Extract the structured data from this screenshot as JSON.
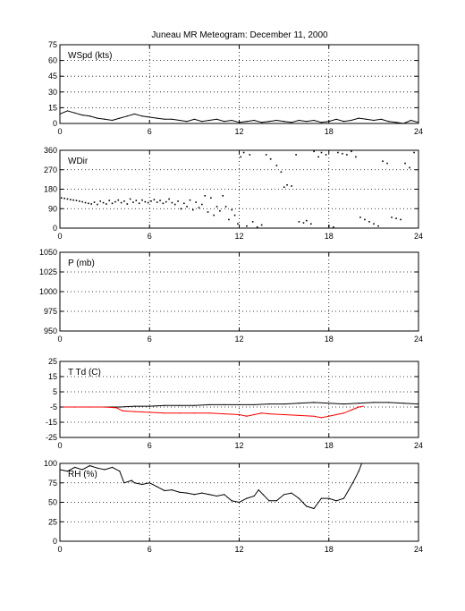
{
  "figure": {
    "title": "Juneau MR Meteogram:   December 11, 2000"
  },
  "colors": {
    "axis": "#000000",
    "grid": "#000000",
    "series_black": "#000000",
    "series_red": "#ff0000"
  },
  "chart_data": [
    {
      "type": "line",
      "label": "WSpd (kts)",
      "xlim": [
        0,
        24
      ],
      "xticks": [
        0,
        6,
        12,
        18,
        24
      ],
      "ylim": [
        0,
        75
      ],
      "yticks": [
        0,
        15,
        30,
        45,
        60,
        75
      ],
      "grid": true,
      "series": [
        {
          "color": "#000000",
          "x": [
            0,
            0.5,
            1,
            1.5,
            2,
            2.5,
            3,
            3.5,
            4,
            4.5,
            5,
            5.5,
            6,
            6.5,
            7,
            7.5,
            8,
            8.5,
            9,
            9.5,
            10,
            10.5,
            11,
            11.5,
            12,
            12.5,
            13,
            13.5,
            14,
            14.5,
            15,
            15.5,
            16,
            16.5,
            17,
            17.5,
            18,
            18.5,
            19,
            19.5,
            20,
            20.5,
            21,
            21.5,
            22,
            22.5,
            23,
            23.5,
            24
          ],
          "y": [
            9,
            12,
            10,
            8,
            7,
            5,
            4,
            3,
            5,
            7,
            9,
            7,
            6,
            5,
            4,
            4,
            3,
            2,
            4,
            2,
            3,
            4,
            2,
            3,
            1,
            2,
            3,
            1,
            2,
            3,
            2,
            1,
            3,
            2,
            3,
            1,
            2,
            4,
            2,
            3,
            5,
            4,
            3,
            4,
            2,
            1,
            0,
            3,
            1
          ]
        }
      ]
    },
    {
      "type": "scatter",
      "label": "WDir",
      "xlim": [
        0,
        24
      ],
      "xticks": [
        0,
        6,
        12,
        18,
        24
      ],
      "ylim": [
        0,
        360
      ],
      "yticks": [
        0,
        90,
        180,
        270,
        360
      ],
      "grid": true,
      "series": [
        {
          "color": "#000000",
          "x": [
            0.1,
            0.3,
            0.5,
            0.7,
            0.9,
            1.1,
            1.3,
            1.5,
            1.7,
            1.9,
            2.1,
            2.3,
            2.5,
            2.7,
            2.9,
            3.1,
            3.3,
            3.5,
            3.7,
            3.9,
            4.1,
            4.3,
            4.5,
            4.7,
            4.9,
            5.1,
            5.3,
            5.5,
            5.7,
            5.9,
            6.1,
            6.3,
            6.5,
            6.7,
            6.9,
            7.1,
            7.3,
            7.5,
            7.7,
            7.9,
            8.1,
            8.3,
            8.5,
            8.7,
            8.9,
            9.1,
            9.3,
            9.5,
            9.7,
            9.9,
            10.1,
            10.3,
            10.5,
            10.7,
            10.9,
            11.1,
            11.3,
            11.5,
            11.7,
            11.9,
            12.1,
            12.3,
            12.5,
            12.7,
            12.9,
            13.2,
            13.5,
            13.8,
            14.1,
            14.5,
            14.8,
            15.0,
            15.2,
            15.5,
            15.8,
            16.0,
            16.3,
            16.5,
            16.8,
            17.0,
            17.3,
            17.5,
            17.8,
            18.0,
            18.3,
            18.6,
            18.9,
            19.2,
            19.5,
            19.8,
            20.1,
            20.4,
            20.7,
            21.0,
            21.3,
            21.6,
            21.9,
            22.2,
            22.5,
            22.8,
            23.1,
            23.4,
            23.7
          ],
          "y": [
            140,
            138,
            135,
            132,
            130,
            128,
            125,
            122,
            118,
            115,
            112,
            120,
            110,
            125,
            118,
            112,
            128,
            115,
            122,
            130,
            118,
            125,
            112,
            135,
            120,
            128,
            115,
            130,
            122,
            118,
            125,
            132,
            120,
            128,
            115,
            122,
            135,
            118,
            110,
            125,
            90,
            115,
            100,
            130,
            85,
            120,
            95,
            110,
            150,
            75,
            140,
            60,
            100,
            80,
            150,
            100,
            40,
            85,
            60,
            20,
            330,
            350,
            10,
            340,
            30,
            5,
            15,
            340,
            320,
            290,
            260,
            190,
            200,
            195,
            340,
            30,
            25,
            35,
            20,
            355,
            330,
            350,
            340,
            10,
            5,
            350,
            345,
            340,
            355,
            330,
            50,
            40,
            30,
            20,
            10,
            310,
            300,
            50,
            45,
            40,
            300,
            280,
            350
          ]
        }
      ]
    },
    {
      "type": "line",
      "label": "P (mb)",
      "xlim": [
        0,
        24
      ],
      "xticks": [
        0,
        6,
        12,
        18,
        24
      ],
      "ylim": [
        950,
        1050
      ],
      "yticks": [
        950,
        975,
        1000,
        1025,
        1050
      ],
      "grid": true,
      "series": []
    },
    {
      "type": "line",
      "label": "T Td (C)",
      "xlim": [
        0,
        24
      ],
      "xticks": [
        0,
        6,
        12,
        18,
        24
      ],
      "ylim": [
        -25,
        25
      ],
      "yticks": [
        -25,
        -15,
        -5,
        5,
        15,
        25
      ],
      "grid": true,
      "series": [
        {
          "color": "#000000",
          "x": [
            0,
            1,
            2,
            3,
            4,
            5,
            6,
            7,
            8,
            9,
            10,
            11,
            12,
            13,
            14,
            15,
            16,
            17,
            18,
            19,
            20,
            21,
            22,
            23,
            24
          ],
          "y": [
            -5,
            -5,
            -5,
            -5,
            -5,
            -4.5,
            -4.5,
            -4,
            -4,
            -4,
            -3.5,
            -3.5,
            -3.5,
            -3.5,
            -3,
            -3,
            -2.5,
            -2,
            -2.5,
            -3,
            -2.5,
            -2,
            -2,
            -2.5,
            -3
          ]
        },
        {
          "color": "#ff0000",
          "x": [
            0,
            1,
            2,
            3,
            3.8,
            4.2,
            5,
            6,
            7,
            8,
            9,
            10,
            11,
            12,
            12.5,
            13,
            13.5,
            14,
            15,
            16,
            17,
            17.5,
            18,
            18.5,
            19,
            19.5,
            20,
            20.3
          ],
          "y": [
            -5,
            -5,
            -5,
            -5,
            -5.5,
            -7.5,
            -8,
            -8.5,
            -9,
            -9,
            -9,
            -9,
            -9.5,
            -10,
            -11,
            -10,
            -9,
            -9.5,
            -10,
            -10.5,
            -11,
            -12,
            -11,
            -10,
            -9,
            -7,
            -5,
            -4.5
          ]
        }
      ]
    },
    {
      "type": "line",
      "label": "RH (%)",
      "xlim": [
        0,
        24
      ],
      "xticks": [
        0,
        6,
        12,
        18,
        24
      ],
      "ylim": [
        0,
        100
      ],
      "yticks": [
        0,
        25,
        50,
        75,
        100
      ],
      "grid": true,
      "series": [
        {
          "color": "#000000",
          "x": [
            0,
            0.5,
            1,
            1.5,
            2,
            2.5,
            3,
            3.5,
            4,
            4.3,
            4.8,
            5,
            5.5,
            6,
            6.5,
            7,
            7.5,
            8,
            8.5,
            9,
            9.5,
            10,
            10.5,
            11,
            11.5,
            12,
            12.5,
            13,
            13.3,
            13.6,
            14,
            14.5,
            15,
            15.5,
            16,
            16.5,
            17,
            17.5,
            18,
            18.5,
            19,
            19.3,
            19.6,
            20,
            20.2
          ],
          "y": [
            92,
            90,
            95,
            92,
            97,
            94,
            92,
            95,
            90,
            75,
            78,
            75,
            73,
            75,
            70,
            65,
            66,
            63,
            62,
            60,
            62,
            60,
            58,
            60,
            52,
            50,
            55,
            58,
            66,
            60,
            52,
            52,
            60,
            62,
            55,
            45,
            42,
            55,
            55,
            52,
            55,
            65,
            75,
            90,
            100
          ]
        }
      ]
    }
  ]
}
